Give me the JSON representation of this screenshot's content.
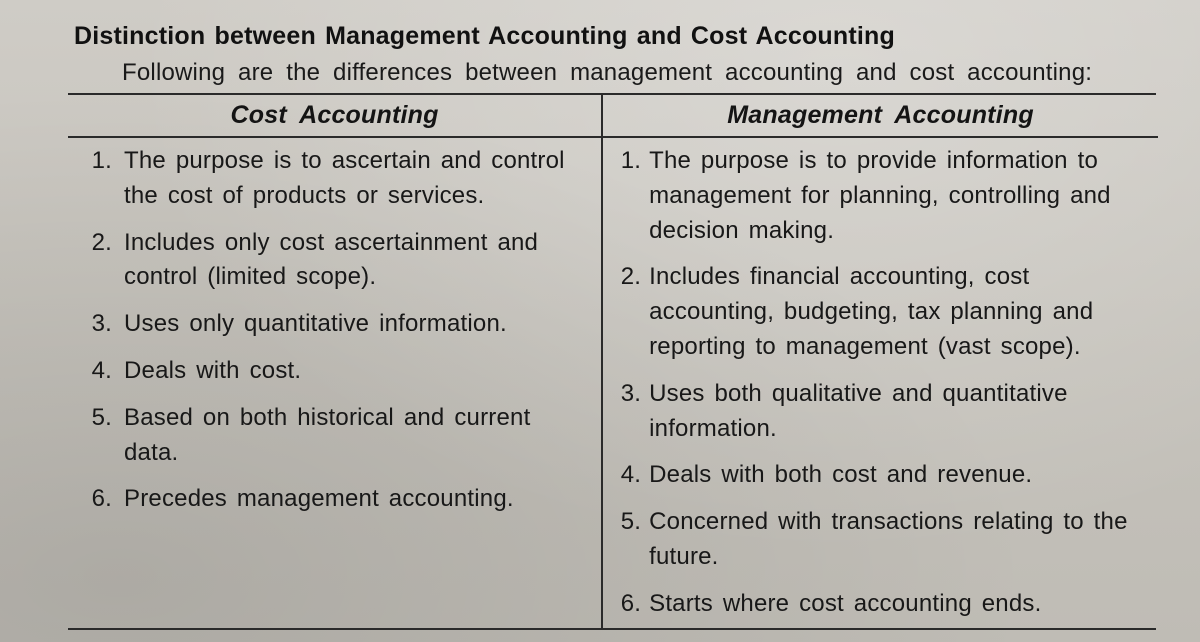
{
  "title": "Distinction between Management Accounting and Cost Accounting",
  "intro": "Following are the differences between management accounting and cost accounting:",
  "table": {
    "left_header": "Cost  Accounting",
    "right_header": "Management Accounting",
    "rows": [
      {
        "n": "1.",
        "left": "The  purpose is to ascertain and control the cost of products or services.",
        "right": "The purpose is to provide information to management for planning, controlling and decision  making."
      },
      {
        "n": "2.",
        "left": "Includes only cost  ascertainment and control (limited scope).",
        "right": "Includes financial accounting, cost accounting, budgeting, tax planning and reporting to management (vast scope)."
      },
      {
        "n": "3.",
        "left": "Uses only quantitative information.",
        "right": "Uses both qualitative and quantitative information."
      },
      {
        "n": "4.",
        "left": "Deals with cost.",
        "right": "Deals with both cost and revenue."
      },
      {
        "n": "5.",
        "left": "Based on both historical and current data.",
        "right": "Concerned with transactions relating to the future."
      },
      {
        "n": "6.",
        "left": "Precedes management accounting.",
        "right": "Starts where cost accounting ends."
      }
    ]
  }
}
